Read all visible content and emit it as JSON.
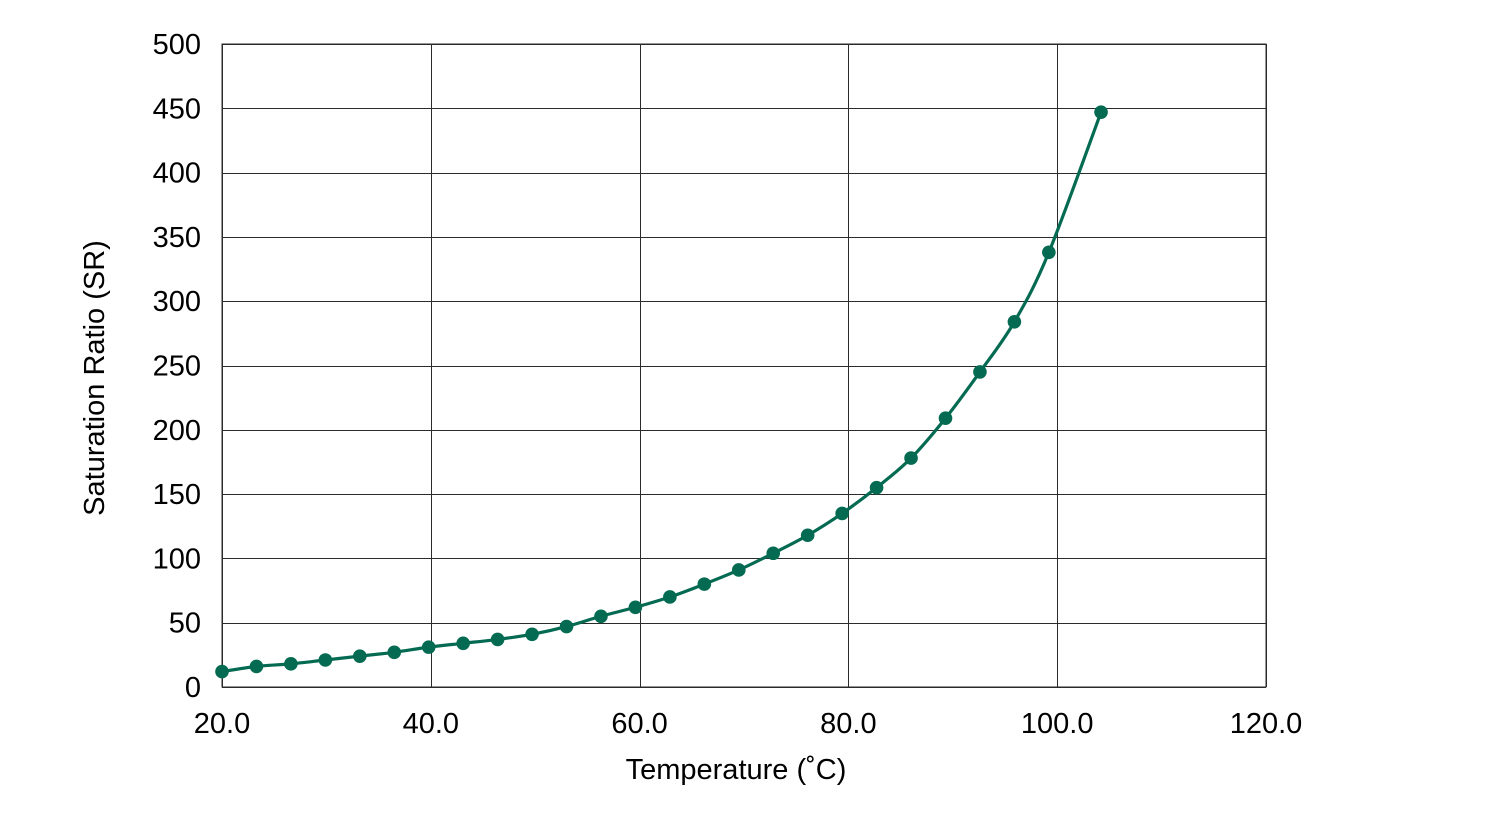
{
  "chart_data": {
    "type": "line",
    "title": "",
    "xlabel": "Temperature (˚C)",
    "ylabel": "Saturation Ratio (SR)",
    "xlim": [
      20,
      120
    ],
    "ylim": [
      0,
      500
    ],
    "x_ticks": [
      "20.0",
      "40.0",
      "60.0",
      "80.0",
      "100.0",
      "120.0"
    ],
    "y_ticks": [
      "0",
      "50",
      "100",
      "150",
      "200",
      "250",
      "300",
      "350",
      "400",
      "450",
      "500"
    ],
    "grid": true,
    "legend": "none",
    "color": "#046b52",
    "series": [
      {
        "x": [
          20.0,
          23.3,
          26.6,
          29.9,
          33.2,
          36.5,
          39.8,
          43.1,
          46.4,
          49.7,
          53.0,
          56.3,
          59.6,
          62.9,
          66.2,
          69.5,
          72.8,
          76.1,
          79.4,
          82.7,
          86.0,
          89.3,
          92.6,
          95.9,
          99.2,
          104.2
        ],
        "y": [
          12,
          16,
          18,
          21,
          24,
          27,
          31,
          34,
          37,
          41,
          47,
          55,
          62,
          70,
          80,
          91,
          104,
          118,
          135,
          155,
          178,
          209,
          245,
          284,
          338,
          447
        ]
      }
    ]
  }
}
